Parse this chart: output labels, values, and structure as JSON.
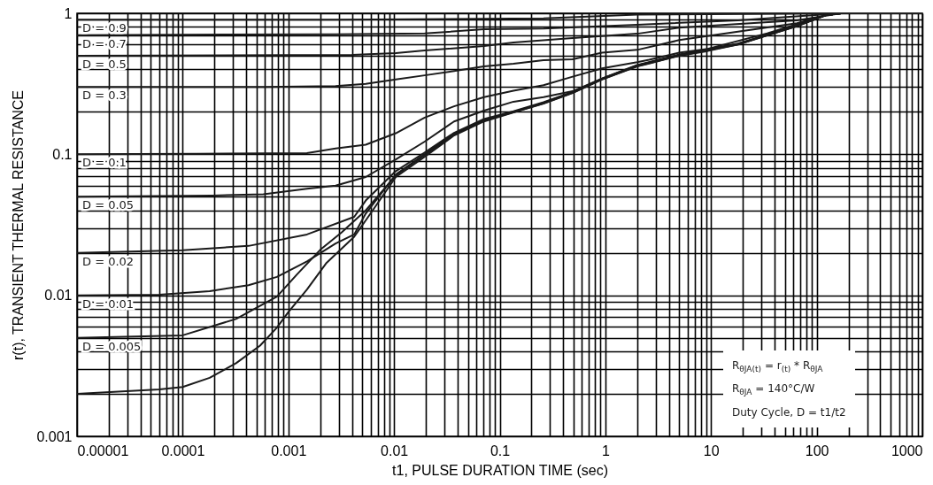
{
  "chart_data": {
    "type": "line",
    "xlabel": "t1, PULSE DURATION TIME (sec)",
    "ylabel": "r(t), TRANSIENT THERMAL RESISTANCE",
    "log": "xy",
    "grid": true,
    "line_style": "solid",
    "marker": "none",
    "xlim": [
      1e-05,
      1000
    ],
    "ylim": [
      0.001,
      1
    ],
    "xticks": [
      {
        "value": 1e-05,
        "label": "0.00001"
      },
      {
        "value": 2e-05,
        "label": null
      },
      {
        "value": 3e-05,
        "label": null
      },
      {
        "value": 4e-05,
        "label": null
      },
      {
        "value": 5e-05,
        "label": null
      },
      {
        "value": 6e-05,
        "label": null
      },
      {
        "value": 7e-05,
        "label": null
      },
      {
        "value": 8e-05,
        "label": null
      },
      {
        "value": 9e-05,
        "label": null
      },
      0.0001,
      {
        "value": 0.0002,
        "label": null
      },
      {
        "value": 0.0003,
        "label": null
      },
      {
        "value": 0.0004,
        "label": null
      },
      {
        "value": 0.0005,
        "label": null
      },
      {
        "value": 0.0006,
        "label": null
      },
      {
        "value": 0.0007,
        "label": null
      },
      {
        "value": 0.0008,
        "label": null
      },
      {
        "value": 0.0009,
        "label": null
      },
      0.001,
      {
        "value": 0.002,
        "label": null
      },
      {
        "value": 0.003,
        "label": null
      },
      {
        "value": 0.004,
        "label": null
      },
      {
        "value": 0.005,
        "label": null
      },
      {
        "value": 0.006,
        "label": null
      },
      {
        "value": 0.007,
        "label": null
      },
      {
        "value": 0.008,
        "label": null
      },
      {
        "value": 0.009,
        "label": null
      },
      0.01,
      {
        "value": 0.02,
        "label": null
      },
      {
        "value": 0.03,
        "label": null
      },
      {
        "value": 0.04,
        "label": null
      },
      {
        "value": 0.05,
        "label": null
      },
      {
        "value": 0.06,
        "label": null
      },
      {
        "value": 0.07,
        "label": null
      },
      {
        "value": 0.08,
        "label": null
      },
      {
        "value": 0.09,
        "label": null
      },
      0.1,
      {
        "value": 0.2,
        "label": null
      },
      {
        "value": 0.3,
        "label": null
      },
      {
        "value": 0.4,
        "label": null
      },
      {
        "value": 0.5,
        "label": null
      },
      {
        "value": 0.6,
        "label": null
      },
      {
        "value": 0.7,
        "label": null
      },
      {
        "value": 0.8,
        "label": null
      },
      {
        "value": 0.9,
        "label": null
      },
      1,
      {
        "value": 2,
        "label": null
      },
      {
        "value": 3,
        "label": null
      },
      {
        "value": 4,
        "label": null
      },
      {
        "value": 5,
        "label": null
      },
      {
        "value": 6,
        "label": null
      },
      {
        "value": 7,
        "label": null
      },
      {
        "value": 8,
        "label": null
      },
      {
        "value": 9,
        "label": null
      },
      10,
      {
        "value": 20,
        "label": null
      },
      {
        "value": 30,
        "label": null
      },
      {
        "value": 40,
        "label": null
      },
      {
        "value": 50,
        "label": null
      },
      {
        "value": 60,
        "label": null
      },
      {
        "value": 70,
        "label": null
      },
      {
        "value": 80,
        "label": null
      },
      {
        "value": 90,
        "label": null
      },
      100,
      {
        "value": 200,
        "label": null
      },
      {
        "value": 300,
        "label": null
      },
      {
        "value": 400,
        "label": null
      },
      {
        "value": 500,
        "label": null
      },
      {
        "value": 600,
        "label": null
      },
      {
        "value": 700,
        "label": null
      },
      {
        "value": 800,
        "label": null
      },
      {
        "value": 900,
        "label": null
      },
      1000
    ],
    "yticks": [
      0.001,
      {
        "value": 0.002,
        "label": null
      },
      {
        "value": 0.003,
        "label": null
      },
      {
        "value": 0.004,
        "label": null
      },
      {
        "value": 0.005,
        "label": null
      },
      {
        "value": 0.006,
        "label": null
      },
      {
        "value": 0.007,
        "label": null
      },
      {
        "value": 0.008,
        "label": null
      },
      {
        "value": 0.009,
        "label": null
      },
      0.01,
      {
        "value": 0.02,
        "label": null
      },
      {
        "value": 0.03,
        "label": null
      },
      {
        "value": 0.04,
        "label": null
      },
      {
        "value": 0.05,
        "label": null
      },
      {
        "value": 0.06,
        "label": null
      },
      {
        "value": 0.07,
        "label": null
      },
      {
        "value": 0.08,
        "label": null
      },
      {
        "value": 0.09,
        "label": null
      },
      0.1,
      {
        "value": 0.2,
        "label": null
      },
      {
        "value": 0.3,
        "label": null
      },
      {
        "value": 0.4,
        "label": null
      },
      {
        "value": 0.5,
        "label": null
      },
      {
        "value": 0.6,
        "label": null
      },
      {
        "value": 0.7,
        "label": null
      },
      {
        "value": 0.8,
        "label": null
      },
      {
        "value": 0.9,
        "label": null
      },
      1
    ],
    "series": [
      {
        "name": "D = 0.9",
        "color": "#1a1a1a",
        "x": [
          1e-05,
          0.0028,
          0.26,
          2,
          20,
          170,
          1000
        ],
        "values": [
          0.9,
          0.9,
          0.92,
          0.98,
          0.99,
          1,
          1
        ]
      },
      {
        "name": "D = 0.7",
        "color": "#1a1a1a",
        "x": [
          1e-05,
          0.0028,
          0.0195,
          0.071,
          0.26,
          2,
          18,
          170,
          1000
        ],
        "values": [
          0.7,
          0.71,
          0.72,
          0.77,
          0.78,
          0.83,
          0.89,
          1,
          1
        ]
      },
      {
        "name": "D = 0.5",
        "color": "#1a1a1a",
        "x": [
          1e-05,
          0.004,
          0.0104,
          0.0195,
          0.071,
          0.135,
          0.49,
          2,
          5,
          65,
          170,
          1000
        ],
        "values": [
          0.5,
          0.507,
          0.521,
          0.545,
          0.586,
          0.621,
          0.667,
          0.716,
          0.79,
          0.89,
          1,
          1
        ]
      },
      {
        "name": "D = 0.3",
        "color": "#1a1a1a",
        "x": [
          1e-05,
          0.0006,
          0.0028,
          0.0054,
          0.0104,
          0.0195,
          0.037,
          0.071,
          0.135,
          0.26,
          0.49,
          0.93,
          2,
          5,
          18,
          65,
          122,
          170,
          1000
        ],
        "values": [
          0.3,
          0.3,
          0.305,
          0.316,
          0.339,
          0.363,
          0.389,
          0.42,
          0.439,
          0.465,
          0.472,
          0.525,
          0.55,
          0.645,
          0.74,
          0.85,
          0.97,
          1,
          1
        ]
      },
      {
        "name": "D = 0.1",
        "color": "#1a1a1a",
        "x": [
          1e-05,
          0.00014,
          0.0015,
          0.0028,
          0.0054,
          0.0104,
          0.0195,
          0.037,
          0.071,
          0.135,
          0.26,
          0.49,
          0.93,
          2,
          2.6,
          5,
          9.3,
          34,
          122,
          170,
          1000
        ],
        "values": [
          0.1,
          0.101,
          0.102,
          0.11,
          0.117,
          0.141,
          0.182,
          0.219,
          0.254,
          0.282,
          0.309,
          0.355,
          0.407,
          0.45,
          0.468,
          0.525,
          0.56,
          0.72,
          0.97,
          1,
          1
        ]
      },
      {
        "name": "D = 0.05",
        "color": "#1a1a1a",
        "x": [
          1e-05,
          0.00019,
          0.00058,
          0.0015,
          0.0028,
          0.0054,
          0.0104,
          0.0195,
          0.037,
          0.071,
          0.135,
          0.26,
          0.49,
          0.93,
          2,
          5,
          18,
          65,
          122,
          170,
          1000
        ],
        "values": [
          0.05,
          0.051,
          0.052,
          0.057,
          0.06,
          0.069,
          0.092,
          0.123,
          0.171,
          0.204,
          0.236,
          0.254,
          0.28,
          0.345,
          0.43,
          0.51,
          0.61,
          0.815,
          0.97,
          1,
          1
        ]
      },
      {
        "name": "D = 0.02",
        "color": "#1a1a1a",
        "x": [
          1e-05,
          0.0001,
          0.00042,
          0.0015,
          0.0042,
          0.0054,
          0.0104,
          0.0195,
          0.037,
          0.071,
          0.135,
          0.26,
          0.49,
          0.93,
          2,
          5,
          18,
          65,
          122,
          170,
          1000
        ],
        "values": [
          0.02,
          0.0209,
          0.0224,
          0.027,
          0.036,
          0.047,
          0.076,
          0.103,
          0.142,
          0.178,
          0.202,
          0.234,
          0.277,
          0.343,
          0.427,
          0.505,
          0.605,
          0.815,
          0.97,
          1,
          1
        ]
      },
      {
        "name": "D = 0.01",
        "color": "#1a1a1a",
        "x": [
          1e-05,
          6e-05,
          0.00018,
          0.00042,
          0.00078,
          0.0015,
          0.0028,
          0.0042,
          0.0054,
          0.0104,
          0.0195,
          0.037,
          0.071,
          0.135,
          0.26,
          0.49,
          0.93,
          2,
          5,
          18,
          65,
          122,
          170,
          1000
        ],
        "values": [
          0.01,
          0.0101,
          0.0107,
          0.0118,
          0.0135,
          0.0174,
          0.0233,
          0.027,
          0.038,
          0.072,
          0.1,
          0.14,
          0.175,
          0.2,
          0.232,
          0.276,
          0.343,
          0.425,
          0.505,
          0.605,
          0.815,
          0.97,
          1,
          1
        ]
      },
      {
        "name": "D = 0.005",
        "color": "#1a1a1a",
        "x": [
          1e-05,
          0.0001,
          0.00032,
          0.00078,
          0.0012,
          0.002,
          0.0032,
          0.0054,
          0.0104,
          0.0195,
          0.037,
          0.071,
          0.135,
          0.26,
          0.49,
          0.93,
          2,
          5,
          18,
          65,
          122,
          170,
          1000
        ],
        "values": [
          0.005,
          0.0052,
          0.0068,
          0.0098,
          0.014,
          0.021,
          0.028,
          0.04,
          0.071,
          0.099,
          0.138,
          0.173,
          0.199,
          0.23,
          0.273,
          0.34,
          0.422,
          0.5,
          0.6,
          0.81,
          0.97,
          1,
          1
        ]
      },
      {
        "color": "#1a1a1a",
        "x": [
          1e-05,
          6e-05,
          0.0001,
          0.00018,
          0.00032,
          0.00054,
          0.00078,
          0.001,
          0.0015,
          0.0023,
          0.0042,
          0.0054,
          0.0104,
          0.0195,
          0.037,
          0.071,
          0.135,
          0.26,
          0.49,
          0.93,
          2,
          2.6,
          5,
          9.3,
          18,
          34,
          65,
          122,
          170,
          1000
        ],
        "values": [
          0.002,
          0.00215,
          0.00224,
          0.0026,
          0.0033,
          0.0044,
          0.0059,
          0.0076,
          0.011,
          0.017,
          0.026,
          0.034,
          0.069,
          0.096,
          0.136,
          0.171,
          0.198,
          0.229,
          0.272,
          0.339,
          0.42,
          0.44,
          0.5,
          0.54,
          0.6,
          0.7,
          0.81,
          0.97,
          1,
          1
        ]
      }
    ],
    "annotations": [
      "R$_{θJA(t)}$ = r$_{(t)}$ * R$_{θJA}$",
      "R$_{θJA}$ = 140°C/W",
      "Duty Cycle, D = t1/t2"
    ]
  }
}
